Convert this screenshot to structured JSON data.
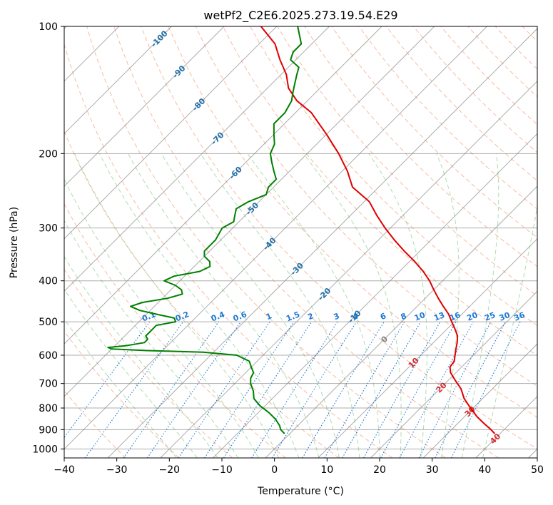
{
  "chart_data": {
    "type": "skew-t",
    "title": "wetPf2_C2E6.2025.273.19.54.E29",
    "xlabel": "Temperature (°C)",
    "ylabel": "Pressure (hPa)",
    "xlim": [
      -40,
      50
    ],
    "ylim": [
      1050,
      100
    ],
    "x_ticks": [
      "−40",
      "−30",
      "−20",
      "−10",
      "0",
      "10",
      "20",
      "30",
      "40",
      "50"
    ],
    "x_tick_values": [
      -40,
      -30,
      -20,
      -10,
      0,
      10,
      20,
      30,
      40,
      50
    ],
    "y_ticks": [
      "100",
      "200",
      "300",
      "400",
      "500",
      "600",
      "700",
      "800",
      "900",
      "1000"
    ],
    "y_tick_values": [
      100,
      200,
      300,
      400,
      500,
      600,
      700,
      800,
      900,
      1000
    ],
    "colors": {
      "temperature": "#e00000",
      "dewpoint": "#008000",
      "isotherm": "#808080",
      "dry_adiabat": "#f4a582",
      "moist_adiabat": "#8fcc8f",
      "mixing_ratio": "#1e78d4",
      "isotherm_label_cold": "#1f6fa8",
      "isotherm_label_warm": "#d62728",
      "isotherm_label_zero": "#808080"
    },
    "series": [
      {
        "name": "Temperature",
        "pressure": [
          920,
          900,
          870,
          840,
          800,
          760,
          720,
          690,
          660,
          640,
          620,
          600,
          580,
          560,
          540,
          520,
          500,
          480,
          460,
          440,
          420,
          400,
          380,
          360,
          340,
          320,
          300,
          280,
          260,
          240,
          220,
          200,
          180,
          160,
          150,
          140,
          130,
          120,
          110,
          100
        ],
        "values": [
          39,
          37.5,
          35,
          32.5,
          29.5,
          26.5,
          24,
          21.5,
          19,
          17.8,
          17.5,
          16.5,
          15.5,
          14.5,
          13.3,
          11.5,
          9.5,
          7.5,
          5,
          2.5,
          0,
          -2.5,
          -5.5,
          -9,
          -13,
          -17,
          -21,
          -25,
          -29,
          -35,
          -39,
          -44,
          -50,
          -57,
          -62,
          -66,
          -69,
          -73,
          -77,
          -83
        ]
      },
      {
        "name": "Dewpoint",
        "pressure": [
          920,
          900,
          880,
          850,
          820,
          790,
          760,
          730,
          700,
          680,
          660,
          640,
          620,
          600,
          590,
          585,
          580,
          575,
          570,
          560,
          550,
          540,
          530,
          520,
          510,
          500,
          490,
          480,
          470,
          460,
          450,
          440,
          430,
          420,
          410,
          400,
          390,
          380,
          370,
          360,
          350,
          340,
          330,
          320,
          300,
          290,
          280,
          270,
          260,
          250,
          240,
          230,
          220,
          210,
          200,
          190,
          180,
          170,
          160,
          150,
          145,
          140,
          130,
          125,
          120,
          115,
          110,
          100
        ],
        "values": [
          -1,
          -2.5,
          -3.5,
          -5.5,
          -8,
          -11,
          -13.5,
          -15,
          -17,
          -18,
          -18.5,
          -20,
          -21.5,
          -25,
          -32,
          -43,
          -50,
          -51,
          -48,
          -45,
          -45,
          -46,
          -46,
          -46,
          -46,
          -43,
          -44,
          -48,
          -52,
          -54.5,
          -53,
          -49,
          -47,
          -48,
          -50,
          -53,
          -52,
          -48,
          -47,
          -48,
          -50,
          -51,
          -51,
          -51,
          -52,
          -51,
          -52,
          -53,
          -52,
          -50,
          -51,
          -51,
          -53,
          -55,
          -57,
          -58,
          -60,
          -62,
          -62,
          -63,
          -64,
          -65,
          -67,
          -68,
          -71,
          -72,
          -72,
          -76
        ]
      }
    ],
    "isotherm_labels": [
      {
        "text": "-100",
        "value": -100,
        "pressure": 107
      },
      {
        "text": "-90",
        "value": -90,
        "pressure": 128
      },
      {
        "text": "-80",
        "value": -80,
        "pressure": 153
      },
      {
        "text": "-70",
        "value": -70,
        "pressure": 184
      },
      {
        "text": "-60",
        "value": -60,
        "pressure": 222
      },
      {
        "text": "-50",
        "value": -50,
        "pressure": 270
      },
      {
        "text": "-40",
        "value": -40,
        "pressure": 327
      },
      {
        "text": "-30",
        "value": -30,
        "pressure": 375
      },
      {
        "text": "-20",
        "value": -20,
        "pressure": 430
      },
      {
        "text": "-10",
        "value": -10,
        "pressure": 486
      },
      {
        "text": "0",
        "value": 0,
        "pressure": 550
      },
      {
        "text": "10",
        "value": 10,
        "pressure": 625
      },
      {
        "text": "20",
        "value": 20,
        "pressure": 715
      },
      {
        "text": "30",
        "value": 30,
        "pressure": 815
      },
      {
        "text": "40",
        "value": 40,
        "pressure": 945
      }
    ],
    "mixing_ratio_labels": [
      "0.1",
      "0.2",
      "0.4",
      "0.6",
      "1",
      "1.5",
      "2",
      "3",
      "4",
      "6",
      "8",
      "10",
      "13",
      "16",
      "20",
      "25",
      "30",
      "36"
    ],
    "mixing_ratio_values": [
      0.1,
      0.2,
      0.4,
      0.6,
      1,
      1.5,
      2,
      3,
      4,
      6,
      8,
      10,
      13,
      16,
      20,
      25,
      30,
      36
    ],
    "mixing_ratio_label_pressure": 500
  }
}
